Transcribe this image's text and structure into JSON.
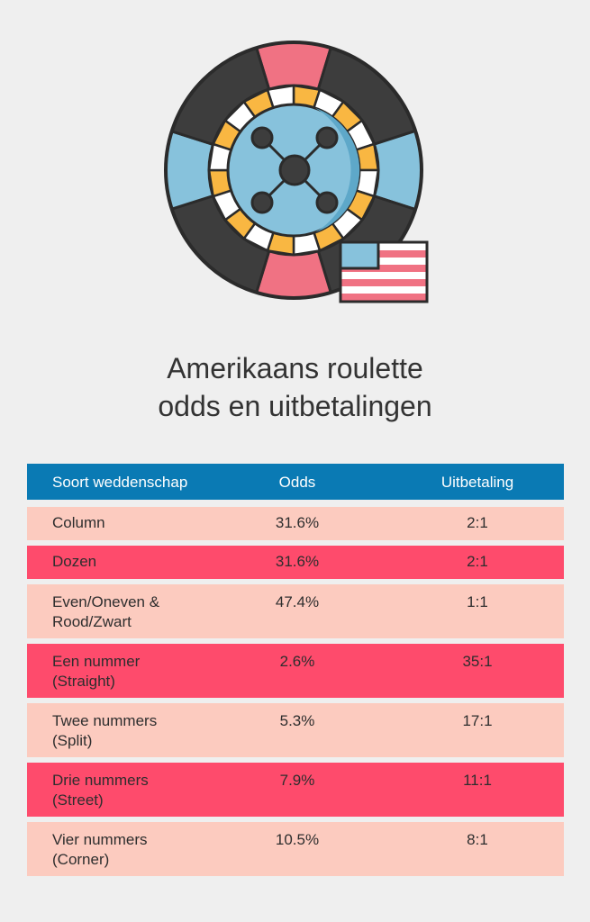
{
  "title": {
    "line1": "Amerikaans roulette",
    "line2": "odds en uitbetalingen"
  },
  "illustration": {
    "name": "american-roulette-wheel-with-us-flag",
    "colors": {
      "dark": "#3d3d3d",
      "blue": "#87c2dc",
      "pink": "#f07283",
      "yellow": "#f9b742",
      "outline": "#2b2b2b",
      "white": "#ffffff"
    }
  },
  "table": {
    "headers": [
      "Soort weddenschap",
      "Odds",
      "Uitbetaling"
    ],
    "rows": [
      {
        "bet": "Column",
        "odds": "31.6%",
        "payout": "2:1"
      },
      {
        "bet": "Dozen",
        "odds": "31.6%",
        "payout": "2:1"
      },
      {
        "bet": "Even/Oneven &\nRood/Zwart",
        "odds": "47.4%",
        "payout": "1:1"
      },
      {
        "bet": "Een nummer\n(Straight)",
        "odds": "2.6%",
        "payout": "35:1"
      },
      {
        "bet": "Twee nummers\n(Split)",
        "odds": "5.3%",
        "payout": "17:1"
      },
      {
        "bet": "Drie nummers\n(Street)",
        "odds": "7.9%",
        "payout": "11:1"
      },
      {
        "bet": "Vier nummers\n(Corner)",
        "odds": "10.5%",
        "payout": "8:1"
      }
    ],
    "colors": {
      "header": "#0a7ab4",
      "row_light": "#fccbbf",
      "row_dark": "#fe4b6c"
    }
  }
}
